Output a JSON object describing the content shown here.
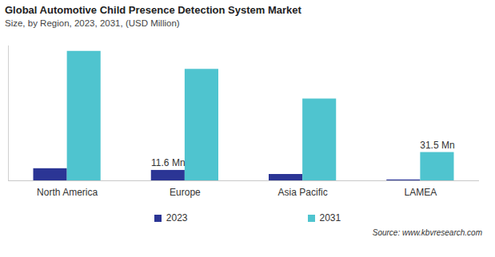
{
  "chart_data": {
    "type": "bar",
    "title": "Global Automotive Child Presence Detection System Market",
    "subtitle": "Size, by Region, 2023, 2031, (USD Million)",
    "categories": [
      "North America",
      "Europe",
      "Asia Pacific",
      "LAMEA"
    ],
    "series": [
      {
        "name": "2023",
        "color": "#2b3595",
        "values": [
          13.5,
          11.6,
          7.1,
          1.0
        ],
        "value_labels": [
          null,
          "11.6 Mn",
          null,
          null
        ]
      },
      {
        "name": "2031",
        "color": "#4fc4cf",
        "values": [
          144,
          124,
          91,
          31.5
        ],
        "value_labels": [
          null,
          null,
          null,
          "31.5 Mn"
        ]
      }
    ],
    "ylim": [
      0,
      150
    ],
    "tick_labels": "x",
    "data_labels": true,
    "legend": "bottom",
    "source": "Source: www.kbvresearch.com"
  }
}
